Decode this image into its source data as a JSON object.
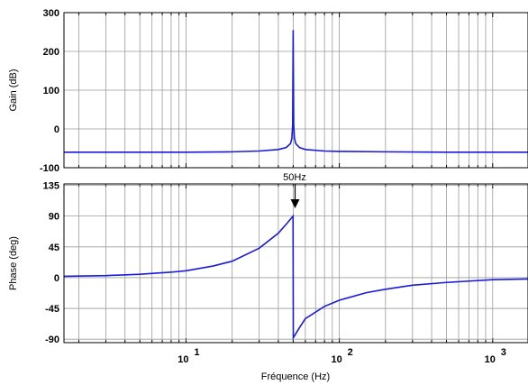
{
  "chart_data": [
    {
      "type": "line",
      "title": "",
      "xlabel": "",
      "ylabel": "Gain (dB)",
      "x_scale": "log",
      "xlim": [
        1.6,
        1700
      ],
      "ylim": [
        -100,
        300
      ],
      "yticks": [
        -100,
        0,
        100,
        200,
        300
      ],
      "ytick_labels": [
        "-100",
        "0",
        "100",
        "200",
        "300"
      ],
      "grid": true,
      "series": [
        {
          "color": "#1a1adc",
          "x": [
            1.6,
            5,
            10,
            20,
            30,
            40,
            45,
            48,
            49,
            49.6,
            50,
            50.4,
            51,
            52,
            55,
            60,
            80,
            100,
            200,
            500,
            1000,
            1700
          ],
          "y": [
            -60,
            -60,
            -60,
            -59,
            -57,
            -53,
            -48,
            -38,
            -25,
            10,
            255,
            10,
            -25,
            -38,
            -48,
            -53,
            -57,
            -58,
            -59,
            -60,
            -60,
            -60
          ]
        }
      ]
    },
    {
      "type": "line",
      "title": "",
      "xlabel": "Fréquence (Hz)",
      "ylabel": "Phase (deg)",
      "x_scale": "log",
      "xlim": [
        1.6,
        1700
      ],
      "ylim": [
        -95,
        137
      ],
      "yticks": [
        -90,
        -45,
        0,
        45,
        90,
        135
      ],
      "ytick_labels": [
        "-90",
        "-45",
        "0",
        "45",
        "90",
        "135"
      ],
      "xticks": [
        10,
        100,
        1000
      ],
      "xtick_labels": [
        {
          "base": "10",
          "exp": "1"
        },
        {
          "base": "10",
          "exp": "2"
        },
        {
          "base": "10",
          "exp": "3"
        }
      ],
      "grid": true,
      "annotations": [
        {
          "text": "50Hz",
          "x": 50,
          "y": 92,
          "arrow": true
        }
      ],
      "series": [
        {
          "color": "#1a1adc",
          "x": [
            1.6,
            3,
            5,
            8,
            10,
            15,
            20,
            30,
            40,
            45,
            49.9,
            50.1,
            55,
            60,
            80,
            100,
            150,
            200,
            300,
            500,
            1000,
            1700
          ],
          "y": [
            2,
            3,
            5,
            8,
            10,
            17,
            24,
            43,
            65,
            78,
            90,
            -88,
            -73,
            -60,
            -42,
            -33,
            -22,
            -17,
            -11,
            -7,
            -3,
            -2
          ]
        }
      ]
    }
  ]
}
